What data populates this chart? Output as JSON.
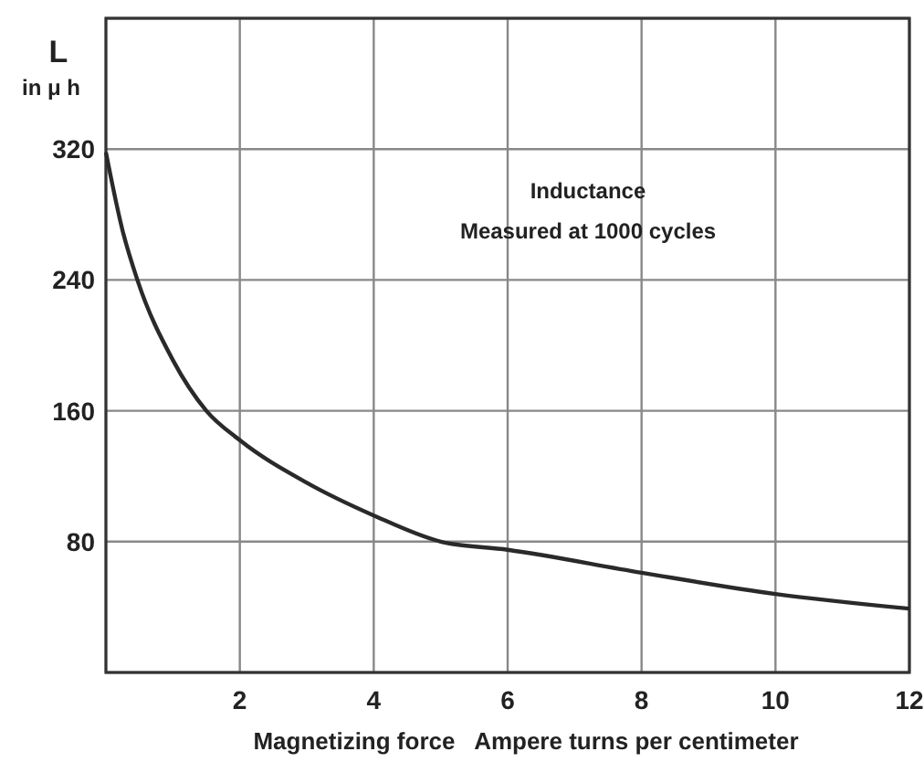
{
  "chart_data": {
    "type": "line",
    "xlabel": "Magnetizing force   Ampere turns per centimeter",
    "ylabel": "L in μ h",
    "annotations": [
      "Inductance",
      "Measured at 1000 cycles"
    ],
    "xlim": [
      0,
      12
    ],
    "ylim": [
      0,
      400
    ],
    "xticks": [
      {
        "value": 0,
        "label": null
      },
      2,
      4,
      6,
      8,
      10,
      12
    ],
    "yticks": [
      {
        "value": 0,
        "label": null
      },
      80,
      160,
      240,
      320,
      {
        "value": 400,
        "label": null
      }
    ],
    "grid": true,
    "marker": "none",
    "line_style": "solid",
    "series": [
      {
        "color": "#2a2a2a",
        "x": [
          0,
          0.25,
          0.47,
          1,
          1.5,
          2,
          3,
          4,
          5,
          6,
          8,
          10,
          12
        ],
        "values": [
          318,
          270,
          240,
          191,
          160,
          142,
          116,
          96,
          80,
          75,
          61,
          48,
          39
        ]
      }
    ]
  }
}
